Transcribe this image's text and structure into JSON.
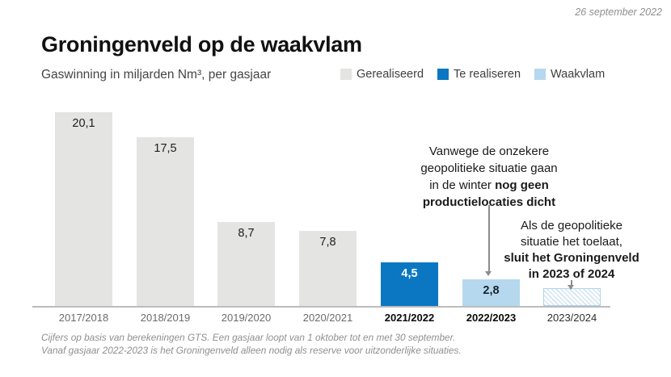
{
  "meta": {
    "date": "26 september 2022"
  },
  "header": {
    "title": "Groningenveld op de waakvlam",
    "subtitle": "Gaswinning in miljarden Nm³, per gasjaar"
  },
  "legend": [
    {
      "label": "Gerealiseerd",
      "color": "#e4e4e3"
    },
    {
      "label": "Te realiseren",
      "color": "#0b77c2"
    },
    {
      "label": "Waakvlam",
      "color": "#b5d8ee"
    }
  ],
  "colors": {
    "gerealiseerd": "#e4e4e3",
    "te_realiseren": "#0b77c2",
    "waakvlam": "#b5d8ee",
    "hatch_border": "#aed3ec",
    "axis": "#bcbcbc",
    "arrow": "#8c8c8c"
  },
  "chart_data": {
    "type": "bar",
    "title": "Groningenveld op de waakvlam",
    "subtitle": "Gaswinning in miljarden Nm³, per gasjaar",
    "xlabel": "gasjaar",
    "ylabel": "Gaswinning in miljarden Nm³",
    "ylim": [
      0,
      21
    ],
    "grid": false,
    "legend_position": "top-right",
    "categories": [
      "2017/2018",
      "2018/2019",
      "2019/2020",
      "2020/2021",
      "2021/2022",
      "2022/2023",
      "2023/2024"
    ],
    "values": [
      20.1,
      17.5,
      8.7,
      7.8,
      4.5,
      2.8,
      1.8
    ],
    "bars": [
      {
        "category": "2017/2018",
        "value": 20.1,
        "value_label": "20,1",
        "status": "gerealiseerd"
      },
      {
        "category": "2018/2019",
        "value": 17.5,
        "value_label": "17,5",
        "status": "gerealiseerd"
      },
      {
        "category": "2019/2020",
        "value": 8.7,
        "value_label": "8,7",
        "status": "gerealiseerd"
      },
      {
        "category": "2020/2021",
        "value": 7.8,
        "value_label": "7,8",
        "status": "gerealiseerd"
      },
      {
        "category": "2021/2022",
        "value": 4.5,
        "value_label": "4,5",
        "status": "te_realiseren"
      },
      {
        "category": "2022/2023",
        "value": 2.8,
        "value_label": "2,8",
        "status": "waakvlam"
      },
      {
        "category": "2023/2024",
        "value": 1.8,
        "value_label": "",
        "status": "waakvlam_voorzien"
      }
    ]
  },
  "annotations": [
    {
      "id": "winter",
      "lines": [
        [
          {
            "text": "Vanwege de onzekere",
            "bold": false
          }
        ],
        [
          {
            "text": "geopolitieke situatie gaan",
            "bold": false
          }
        ],
        [
          {
            "text": "in de winter ",
            "bold": false
          },
          {
            "text": "nog geen",
            "bold": true
          }
        ],
        [
          {
            "text": "productielocaties dicht",
            "bold": true
          }
        ]
      ]
    },
    {
      "id": "sluiting",
      "lines": [
        [
          {
            "text": "Als de geopolitieke",
            "bold": false
          }
        ],
        [
          {
            "text": "situatie het toelaat,",
            "bold": false
          }
        ],
        [
          {
            "text": "sluit het Groningenveld",
            "bold": true
          }
        ],
        [
          {
            "text": "in 2023 of 2024",
            "bold": true
          }
        ]
      ]
    }
  ],
  "footer": {
    "line1": "Cijfers op basis van berekeningen GTS. Een gasjaar loopt van 1 oktober tot en met 30 september.",
    "line2": "Vanaf gasjaar 2022-2023 is het Groningenveld alleen nodig als reserve voor uitzonderlijke situaties."
  }
}
